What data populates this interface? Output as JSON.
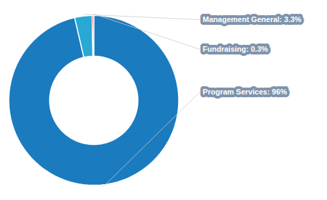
{
  "chart_data": {
    "type": "donut",
    "categories": [
      "Program Services",
      "Management General",
      "Fundraising"
    ],
    "values": [
      96,
      3.3,
      0.3
    ],
    "value_labels": [
      "Program Services: 96%",
      "Management General: 3.3%",
      "Fundraising: 0.3%"
    ],
    "colors": [
      "#1a7bbf",
      "#29a8d4",
      "#d9232d"
    ],
    "data_labels": true
  }
}
